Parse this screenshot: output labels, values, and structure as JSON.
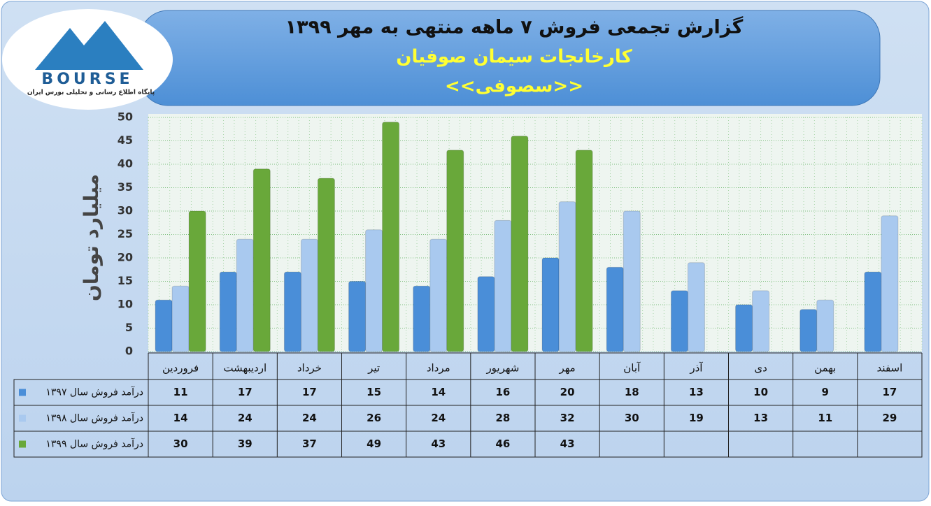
{
  "chart_data": {
    "type": "bar",
    "title": "گزارش تجمعی فروش ۷ ماهه منتهی به مهر ۱۳۹۹",
    "subtitle": "کارخانجات سیمان صوفیان",
    "symbol": "<<سصوفی>>",
    "logo": {
      "name": "BOURSE",
      "tagline": "پایگاه اطلاع رسانی و تحلیلی بورس ایران"
    },
    "y_label": "میلیارد تومان",
    "categories": [
      "فروردین",
      "اردیبهشت",
      "خرداد",
      "تیر",
      "مرداد",
      "شهریور",
      "مهر",
      "آبان",
      "آذر",
      "دی",
      "بهمن",
      "اسفند"
    ],
    "series": [
      {
        "name": "درآمد فروش سال ۱۳۹۷",
        "color": "#4a8ed8",
        "values": [
          11,
          17,
          17,
          15,
          14,
          16,
          20,
          18,
          13,
          10,
          9,
          17
        ]
      },
      {
        "name": "درآمد فروش سال ۱۳۹۸",
        "color": "#a9c9ef",
        "values": [
          14,
          24,
          24,
          26,
          24,
          28,
          32,
          30,
          19,
          13,
          11,
          29
        ]
      },
      {
        "name": "درآمد فروش سال ۱۳۹۹",
        "color": "#69a83a",
        "values": [
          30,
          39,
          37,
          49,
          43,
          46,
          43,
          null,
          null,
          null,
          null,
          null
        ]
      }
    ],
    "ylim": [
      0,
      50
    ],
    "yticks": [
      0,
      5,
      10,
      15,
      20,
      25,
      30,
      35,
      40,
      45,
      50
    ],
    "grid": true
  }
}
